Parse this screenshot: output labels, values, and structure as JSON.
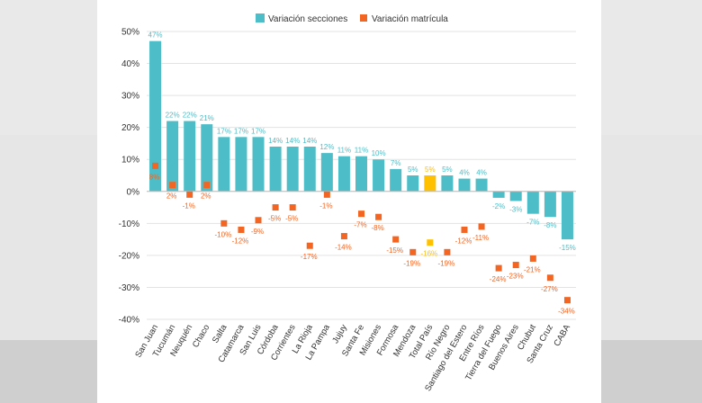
{
  "chart_data": {
    "type": "bar",
    "title": "",
    "xlabel": "",
    "ylabel": "",
    "ylim": [
      -40,
      50
    ],
    "y_ticks": [
      "50%",
      "40%",
      "30%",
      "20%",
      "10%",
      "0%",
      "-10%",
      "-20%",
      "-30%",
      "-40%"
    ],
    "grid": true,
    "legend_position": "top",
    "categories": [
      "San Juan",
      "Tucumán",
      "Neuquén",
      "Chaco",
      "Salta",
      "Catamarca",
      "San Luis",
      "Córdoba",
      "Corrientes",
      "La Rioja",
      "La Pampa",
      "Jujuy",
      "Santa Fe",
      "Misiones",
      "Formosa",
      "Mendoza",
      "Total País",
      "Río Negro",
      "Santiago del Estero",
      "Entre Ríos",
      "Tierra del Fuego",
      "Buenos Aires",
      "Chubut",
      "Santa Cruz",
      "CABA"
    ],
    "series": [
      {
        "name": "Variación secciones",
        "kind": "bar",
        "color": "#4dbec8",
        "highlight_color": "#ffc000",
        "highlight_category": "Total País",
        "values": [
          47,
          22,
          22,
          21,
          17,
          17,
          17,
          14,
          14,
          14,
          12,
          11,
          11,
          10,
          7,
          5,
          5,
          5,
          4,
          4,
          -2,
          -3,
          -7,
          -8,
          -15
        ],
        "labels": [
          "47%",
          "22%",
          "22%",
          "21%",
          "17%",
          "17%",
          "17%",
          "14%",
          "14%",
          "14%",
          "12%",
          "11%",
          "11%",
          "10%",
          "7%",
          "5%",
          "5%",
          "5%",
          "4%",
          "4%",
          "-2%",
          "-3%",
          "-7%",
          "-8%",
          "-15%"
        ]
      },
      {
        "name": "Variación matrícula",
        "kind": "marker",
        "color": "#f26522",
        "highlight_color": "#ffc000",
        "highlight_category": "Total País",
        "values": [
          8,
          2,
          -1,
          2,
          -10,
          -12,
          -9,
          -5,
          -5,
          -17,
          -1,
          -14,
          -7,
          -8,
          -15,
          -19,
          -16,
          -19,
          -12,
          -11,
          -24,
          -23,
          -21,
          -27,
          -34
        ],
        "labels": [
          "8%",
          "2%",
          "-1%",
          "2%",
          "-10%",
          "-12%",
          "-9%",
          "-5%",
          "-5%",
          "-17%",
          "-1%",
          "-14%",
          "-7%",
          "-8%",
          "-15%",
          "-19%",
          "-16%",
          "-19%",
          "-12%",
          "-11%",
          "-24%",
          "-23%",
          "-21%",
          "-27%",
          "-34%"
        ]
      }
    ]
  }
}
